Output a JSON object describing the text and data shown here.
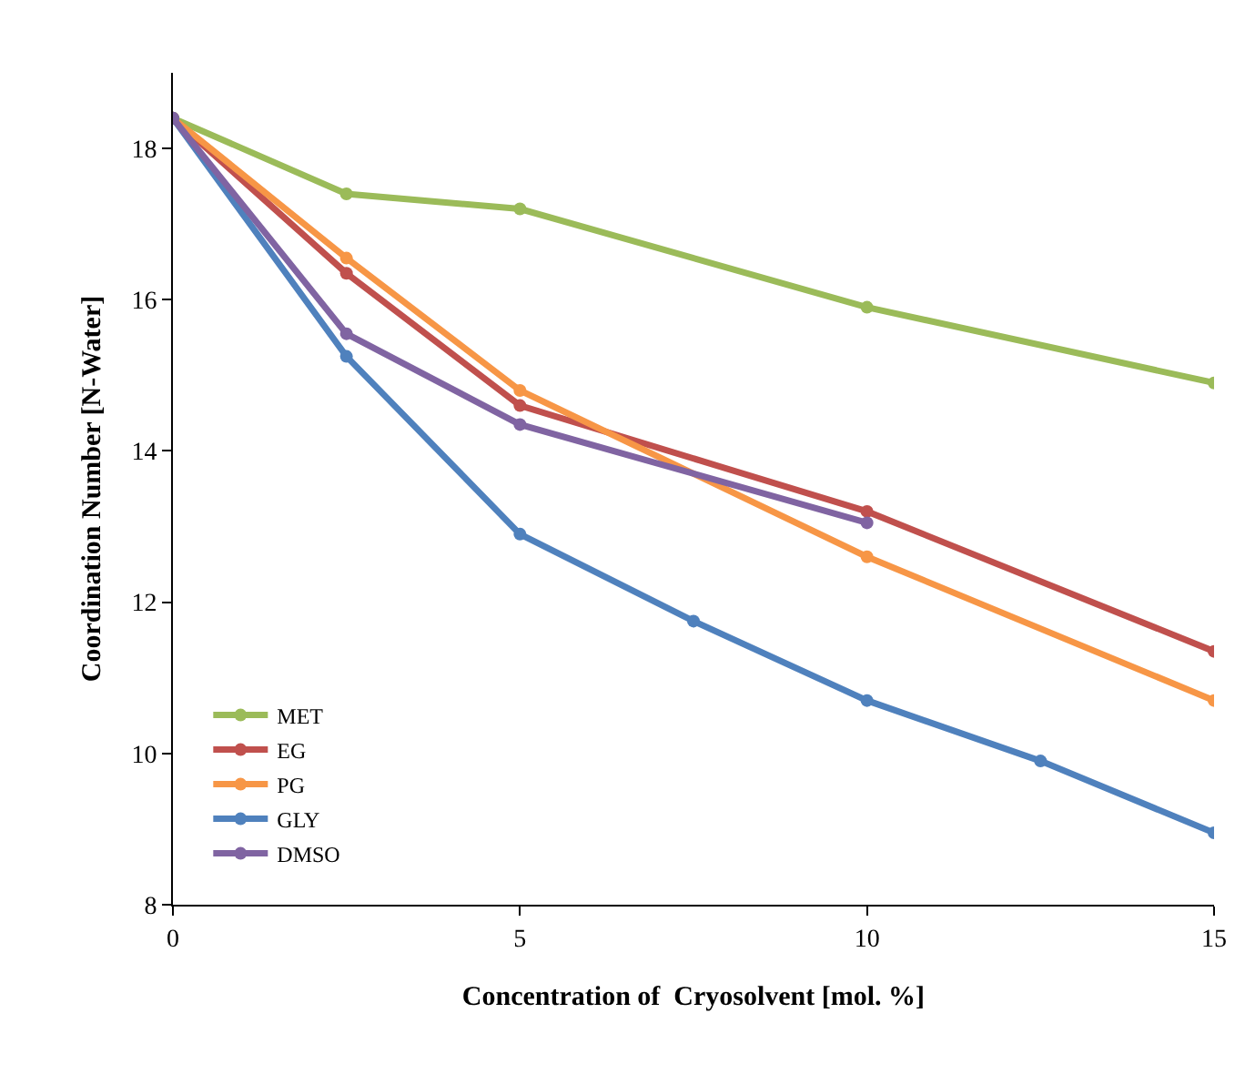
{
  "chart_data": {
    "type": "line",
    "xlabel": "Concentration of  Cryosolvent [mol. %]",
    "ylabel": "Coordination Number [N-Water]",
    "xlim": [
      0,
      15
    ],
    "xticks": [
      0,
      5,
      10,
      15
    ],
    "ylim": [
      8,
      19
    ],
    "yticks": [
      8,
      10,
      12,
      14,
      16,
      18
    ],
    "grid": false,
    "legend": "bottom left",
    "marker": "circle",
    "line_style": "solid",
    "series": [
      {
        "name": "MET",
        "color": "#9bbb59",
        "x": [
          0,
          2.5,
          5,
          10,
          15
        ],
        "values": [
          18.4,
          17.4,
          17.2,
          15.9,
          14.9
        ]
      },
      {
        "name": "EG",
        "color": "#c0504d",
        "x": [
          0,
          2.5,
          5,
          10,
          15
        ],
        "values": [
          18.4,
          16.35,
          14.6,
          13.2,
          11.35
        ]
      },
      {
        "name": "PG",
        "color": "#f79646",
        "x": [
          0,
          2.5,
          5,
          10,
          15
        ],
        "values": [
          18.4,
          16.55,
          14.8,
          12.6,
          10.7
        ]
      },
      {
        "name": "GLY",
        "color": "#4f81bd",
        "x": [
          0,
          2.5,
          5,
          7.5,
          10,
          12.5,
          15
        ],
        "values": [
          18.4,
          15.25,
          12.9,
          11.75,
          10.7,
          9.9,
          8.95
        ]
      },
      {
        "name": "DMSO",
        "color": "#8064a2",
        "x": [
          0,
          2.5,
          5,
          10
        ],
        "values": [
          18.4,
          15.55,
          14.35,
          13.05
        ]
      }
    ]
  }
}
